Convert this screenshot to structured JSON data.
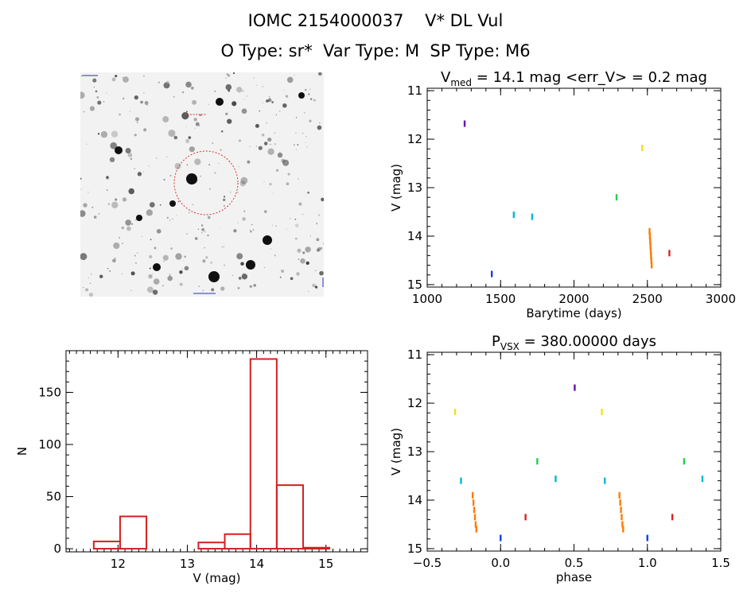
{
  "header": {
    "title": "IOMC 2154000037    V* DL Vul",
    "subtitle": "O Type: sr*  Var Type: M  SP Type: M6"
  },
  "colors": {
    "hist_bar": "#d42020",
    "finder_circle": "#e03030",
    "text": "#000000"
  },
  "chart_data": [
    {
      "type": "image",
      "name": "finder-chart",
      "circle_color": "#e03030"
    },
    {
      "type": "scatter",
      "name": "light-curve",
      "title_prefix": "V",
      "title_sub": "med",
      "title_rest": " = 14.1 mag <err_V> = 0.2 mag",
      "xlabel": "Barytime (days)",
      "ylabel": "V (mag)",
      "xlim": [
        1000,
        3000
      ],
      "ylim": [
        15.05,
        10.95
      ],
      "y_inverted": true,
      "xticks": [
        1000,
        1500,
        2000,
        2500,
        3000
      ],
      "yticks": [
        11,
        12,
        13,
        14,
        15
      ],
      "series": [
        {
          "color": "#6a0dad",
          "points": [
            [
              1255,
              11.68
            ]
          ]
        },
        {
          "color": "#00b7d4",
          "points": [
            [
              1590,
              13.56
            ],
            [
              1715,
              13.6
            ]
          ]
        },
        {
          "color": "#1040e0",
          "points": [
            [
              1440,
              14.78
            ]
          ]
        },
        {
          "color": "#20d050",
          "points": [
            [
              2290,
              13.2
            ]
          ]
        },
        {
          "color": "#f0e020",
          "points": [
            [
              2465,
              12.18
            ]
          ]
        },
        {
          "color": "#ff7a00",
          "points": [
            [
              2515,
              13.9
            ],
            [
              2517,
              14.0
            ],
            [
              2519,
              14.1
            ],
            [
              2521,
              14.2
            ],
            [
              2523,
              14.3
            ],
            [
              2525,
              14.4
            ],
            [
              2527,
              14.5
            ],
            [
              2529,
              14.6
            ]
          ]
        },
        {
          "color": "#e02020",
          "points": [
            [
              2650,
              14.35
            ]
          ]
        }
      ]
    },
    {
      "type": "bar",
      "name": "histogram",
      "xlabel": "V (mag)",
      "ylabel": "N",
      "xlim": [
        11.25,
        15.6
      ],
      "ylim": [
        -3,
        190
      ],
      "xticks": [
        12,
        13,
        14,
        15
      ],
      "yticks": [
        0,
        50,
        100,
        150
      ],
      "bins": [
        {
          "lo": 11.65,
          "hi": 12.03,
          "n": 7
        },
        {
          "lo": 12.03,
          "hi": 12.41,
          "n": 31
        },
        {
          "lo": 13.16,
          "hi": 13.54,
          "n": 6
        },
        {
          "lo": 13.54,
          "hi": 13.91,
          "n": 14
        },
        {
          "lo": 13.91,
          "hi": 14.29,
          "n": 182
        },
        {
          "lo": 14.29,
          "hi": 14.67,
          "n": 61
        },
        {
          "lo": 14.67,
          "hi": 15.05,
          "n": 1
        }
      ]
    },
    {
      "type": "scatter",
      "name": "phase-curve",
      "title_prefix": "P",
      "title_sub": "VSX",
      "title_rest": " = 380.00000 days",
      "xlabel": "phase",
      "ylabel": "V (mag)",
      "xlim": [
        -0.5,
        1.5
      ],
      "ylim": [
        15.05,
        10.95
      ],
      "y_inverted": true,
      "xticks": [
        -0.5,
        0.0,
        0.5,
        1.0,
        1.5
      ],
      "xtick_labels": [
        "−0.5",
        "0.0",
        "0.5",
        "1.0",
        "1.5"
      ],
      "yticks": [
        11,
        12,
        13,
        14,
        15
      ],
      "series": [
        {
          "color": "#6a0dad",
          "points": [
            [
              0.505,
              11.68
            ]
          ]
        },
        {
          "color": "#f0e020",
          "points": [
            [
              -0.31,
              12.18
            ],
            [
              0.69,
              12.18
            ]
          ]
        },
        {
          "color": "#20d050",
          "points": [
            [
              0.25,
              13.2
            ],
            [
              1.25,
              13.2
            ]
          ]
        },
        {
          "color": "#00b7d4",
          "points": [
            [
              -0.27,
              13.6
            ],
            [
              0.375,
              13.56
            ],
            [
              0.71,
              13.6
            ],
            [
              1.375,
              13.56
            ]
          ]
        },
        {
          "color": "#1040e0",
          "points": [
            [
              0.0,
              14.78
            ],
            [
              1.0,
              14.78
            ]
          ]
        },
        {
          "color": "#e02020",
          "points": [
            [
              0.17,
              14.35
            ],
            [
              1.17,
              14.35
            ]
          ]
        },
        {
          "color": "#ff7a00",
          "points": [
            [
              -0.19,
              13.9
            ],
            [
              -0.185,
              14.05
            ],
            [
              -0.18,
              14.2
            ],
            [
              -0.175,
              14.35
            ],
            [
              -0.17,
              14.5
            ],
            [
              -0.165,
              14.6
            ],
            [
              0.81,
              13.9
            ],
            [
              0.815,
              14.05
            ],
            [
              0.82,
              14.2
            ],
            [
              0.825,
              14.35
            ],
            [
              0.83,
              14.5
            ],
            [
              0.835,
              14.6
            ]
          ]
        }
      ]
    }
  ]
}
